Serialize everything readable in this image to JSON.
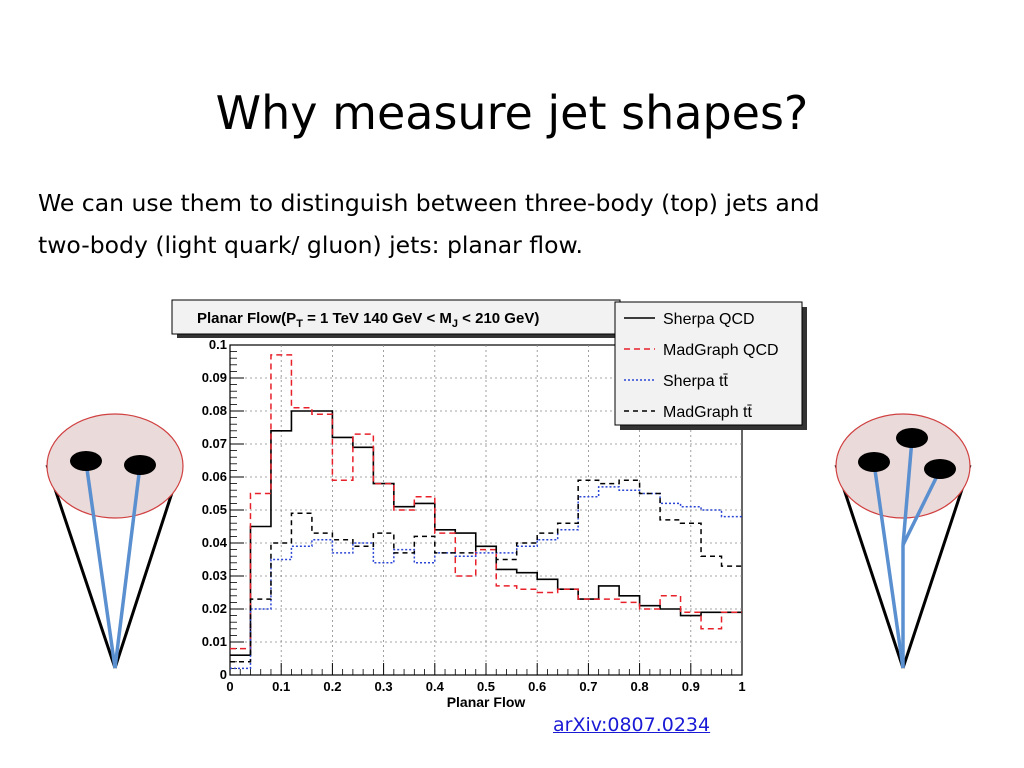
{
  "slide": {
    "title": "Why measure jet shapes?",
    "body_lines": [
      "We can use them to distinguish between three-body (top) jets and",
      "two-body (light quark/ gluon) jets: planar flow."
    ],
    "reference_link": "arXiv:0807.0234"
  },
  "colors": {
    "sherpa_qcd": "#000000",
    "madgraph_qcd": "#e8202a",
    "sherpa_tt": "#2b46d6",
    "madgraph_tt": "#000000",
    "jet_cone_line": "#000000",
    "jet_track": "#5a8fd0",
    "blob_fill": "#ebdada",
    "blob_edge": "#d04040"
  },
  "chart_data": {
    "type": "line",
    "style": "step histogram",
    "title_text": "Planar Flow(P",
    "title_sub": "T",
    "title_mid": " = 1 TeV 140 GeV < M",
    "title_sub2": "J",
    "title_end": " < 210 GeV)",
    "xlabel": "Planar Flow",
    "ylabel": "",
    "xlim": [
      0,
      1
    ],
    "ylim": [
      0,
      0.1
    ],
    "grid": true,
    "legend_position": "top-right",
    "x_ticks": [
      "0",
      "0.1",
      "0.2",
      "0.3",
      "0.4",
      "0.5",
      "0.6",
      "0.7",
      "0.8",
      "0.9",
      "1"
    ],
    "y_ticks": [
      "0",
      "0.01",
      "0.02",
      "0.03",
      "0.04",
      "0.05",
      "0.06",
      "0.07",
      "0.08",
      "0.09",
      "0.1"
    ],
    "bin_edges": [
      0,
      0.04,
      0.08,
      0.12,
      0.16,
      0.2,
      0.24,
      0.28,
      0.32,
      0.36,
      0.4,
      0.44,
      0.48,
      0.52,
      0.56,
      0.6,
      0.64,
      0.68,
      0.72,
      0.76,
      0.8,
      0.84,
      0.88,
      0.92,
      0.96,
      1.0
    ],
    "series": [
      {
        "name": "Sherpa QCD",
        "dash": "solid",
        "values": [
          0.006,
          0.045,
          0.074,
          0.08,
          0.08,
          0.072,
          0.069,
          0.058,
          0.051,
          0.052,
          0.044,
          0.043,
          0.039,
          0.032,
          0.031,
          0.029,
          0.026,
          0.023,
          0.027,
          0.024,
          0.021,
          0.02,
          0.018,
          0.019,
          0.019
        ]
      },
      {
        "name": "MadGraph QCD",
        "dash": "dashed",
        "values": [
          0.008,
          0.055,
          0.097,
          0.081,
          0.079,
          0.059,
          0.073,
          0.058,
          0.05,
          0.054,
          0.043,
          0.03,
          0.038,
          0.027,
          0.026,
          0.025,
          0.026,
          0.023,
          0.023,
          0.022,
          0.02,
          0.024,
          0.019,
          0.014,
          0.019
        ]
      },
      {
        "name": "Sherpa tt̄",
        "dash": "dotted",
        "values": [
          0.002,
          0.02,
          0.035,
          0.039,
          0.041,
          0.037,
          0.04,
          0.034,
          0.038,
          0.034,
          0.037,
          0.036,
          0.037,
          0.037,
          0.039,
          0.041,
          0.044,
          0.054,
          0.057,
          0.056,
          0.055,
          0.052,
          0.051,
          0.05,
          0.048
        ]
      },
      {
        "name": "MadGraph tt̄",
        "dash": "short-dashed",
        "values": [
          0.004,
          0.023,
          0.04,
          0.049,
          0.043,
          0.041,
          0.039,
          0.043,
          0.037,
          0.042,
          0.037,
          0.037,
          0.039,
          0.035,
          0.04,
          0.043,
          0.046,
          0.059,
          0.058,
          0.059,
          0.055,
          0.047,
          0.046,
          0.036,
          0.033
        ]
      }
    ]
  }
}
